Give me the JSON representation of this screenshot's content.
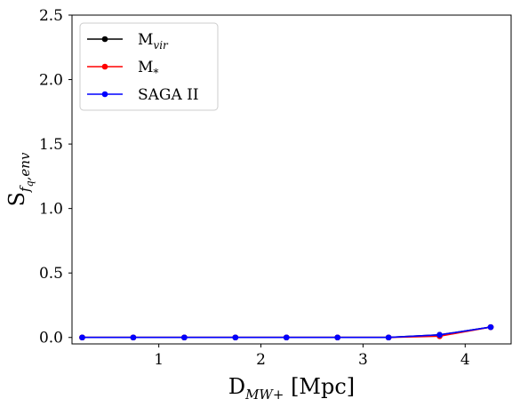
{
  "chart_data": {
    "type": "line",
    "title": "",
    "xlabel": "D",
    "xlabel_sub": "MW+",
    "xlabel_unit": " [Mpc]",
    "ylabel": "S",
    "ylabel_sub": "f",
    "ylabel_subsub": "q",
    "ylabel_sub_tail": ",env",
    "xlim": [
      0.15,
      4.45
    ],
    "ylim": [
      -0.05,
      2.5
    ],
    "xticks": [
      1,
      2,
      3,
      4
    ],
    "xtick_labels": [
      "1",
      "2",
      "3",
      "4"
    ],
    "yticks": [
      0.0,
      0.5,
      1.0,
      1.5,
      2.0,
      2.5
    ],
    "ytick_labels": [
      "0.0",
      "0.5",
      "1.0",
      "1.5",
      "2.0",
      "2.5"
    ],
    "grid": false,
    "legend_position": "top-left",
    "x": [
      0.25,
      0.75,
      1.25,
      1.75,
      2.25,
      2.75,
      3.25,
      3.75,
      4.25
    ],
    "series": [
      {
        "name": "M",
        "name_sub": "vir",
        "color": "#000000",
        "values": [
          0.0,
          0.0,
          0.0,
          0.0,
          0.0,
          0.0,
          0.0,
          0.02,
          0.08
        ]
      },
      {
        "name": "M",
        "name_sub": "*",
        "color": "#ff0000",
        "values": [
          0.0,
          0.0,
          0.0,
          0.0,
          0.0,
          0.0,
          0.0,
          0.01,
          0.08
        ]
      },
      {
        "name": "SAGA II",
        "name_sub": "",
        "color": "#0000ff",
        "values": [
          0.0,
          0.0,
          0.0,
          0.0,
          0.0,
          0.0,
          0.0,
          0.02,
          0.08
        ]
      }
    ]
  }
}
